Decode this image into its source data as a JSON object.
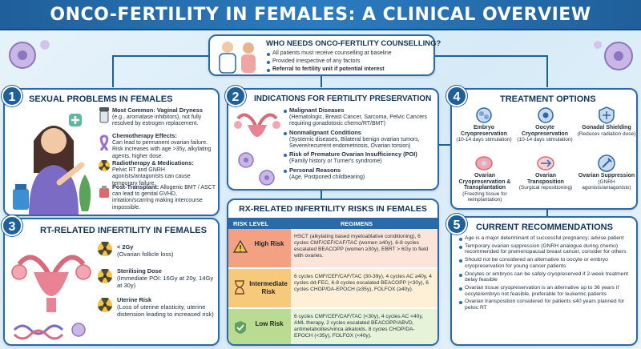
{
  "title": "ONCO-FERTILITY IN FEMALES: A CLINICAL OVERVIEW",
  "who": {
    "heading": "WHO NEEDS ONCO-FERTILITY COUNSELLING?",
    "items": [
      "All patients must receive counselling at baseline",
      "Provided irrespective of any factors",
      "Referral to fertility unit if potential interest"
    ]
  },
  "sexual": {
    "num": "1",
    "heading": "SEXUAL PROBLEMS IN FEMALES",
    "items": [
      {
        "title": "Most Common: Vaginal Dryness",
        "body": "(e.g., aromatase inhibitors), not fully resolved by estrogen replacement."
      },
      {
        "title": "Chemotherapy Effects:",
        "body": "Can lead to permanent ovarian failure. Risk increases with age >35y, alkylating agents, higher dose."
      },
      {
        "title": "Radiotherapy & Medications:",
        "body": "Pelvic RT and GNRH agonists/antagonists can cause temporary failure."
      },
      {
        "title": "Post-Transplant:",
        "body": "Allogenic BMT / ASCT can lead to genital GVHD, irritation/scarring making intercourse impossible."
      }
    ]
  },
  "indications": {
    "num": "2",
    "heading": "INDICATIONS FOR FERTILITY PRESERVATION",
    "items": [
      {
        "title": "Malignant Diseases",
        "body": "(Hematologic, Breast Cancer, Sarcoma, Pelvic Cancers requiring gonadotoxic chemo/RT/BMT)"
      },
      {
        "title": "Nonmalignant Conditions",
        "body": "(Systemic diseases, Bilateral benign ovarian tumors, Severe/recurrent endometriosis, Ovarian torsion)"
      },
      {
        "title": "Risk of Premature Ovarian Insufficiency (POI)",
        "body": "(Family history or Turner's syndrome)"
      },
      {
        "title": "Personal Reasons",
        "body": "(Age, Postponed childbearing)"
      }
    ]
  },
  "rt": {
    "num": "3",
    "heading": "RT-RELATED INFERTILITY IN FEMALES",
    "items": [
      {
        "title": "< 2Gy",
        "body": "(Ovarian follicle loss)"
      },
      {
        "title": "Sterilising Dose",
        "body": "(Immediate POI: 16Gy at 20y, 14Gy at 30y)"
      },
      {
        "title": "Uterine Risk",
        "body": "(Loss of uterine elasticity, uterine distension leading to increased risk)"
      }
    ]
  },
  "rx": {
    "heading": "RX-RELATED INFERTILITY RISKS IN FEMALES",
    "col1": "RISK LEVEL",
    "col2": "REGIMENS",
    "rows": [
      {
        "level": "High Risk",
        "regimens": "HSCT (alkylating based myeloablative conditioning), 6 cycles CMF/CEF/CAF/TAC (women ≥40y), 6-8 cycles escalated BEACOPP (women ≥30y), EBRT > 6Gy to field with ovaries.",
        "color": "#f4a083"
      },
      {
        "level": "Intermediate Risk",
        "regimens": "6 cycles CMF/CEF/CAF/TAC (30-39y), 4 cycles AC ≥40y, 4 cycles dd-FEC, 6-8 cycles escalated BEACOPP (<30y), 6 cycles CHOP/DA-EPOCH (≥35y), FOLFOX (≥40y).",
        "color": "#f7c97a"
      },
      {
        "level": "Low Risk",
        "regimens": "6 cycles CMF/CEF/CAF/TAC (<30y), 4 cycles AC <40y, AML therapy, 2 cycles escalated BEACOPP/ABVD, antimetabolites/vinca alkaloids, 8 cycles CHOP/DA-EPOCH (<35y), FOLFOX (<40y).",
        "color": "#b9dc92"
      }
    ]
  },
  "treatment": {
    "num": "4",
    "heading": "TREATMENT OPTIONS",
    "options": [
      {
        "title": "Embryo Cryopreservation",
        "note": "(10-14 days stimulation)"
      },
      {
        "title": "Oocyte Cryopreservation",
        "note": "(10-14 days stimulation)"
      },
      {
        "title": "Gonadal Shielding",
        "note": "(Reduces radiation dose)"
      },
      {
        "title": "Ovarian Cryopreservation & Transplantation",
        "note": "(Freezing tissue for reimplantation)"
      },
      {
        "title": "Ovarian Transposition",
        "note": "(Surgical repositioning)"
      },
      {
        "title": "Ovarian Suppression",
        "note": "(GNRH agonists/antagonists)"
      }
    ]
  },
  "recs": {
    "num": "5",
    "heading": "CURRENT RECOMMENDATIONS",
    "items": [
      "Age is a major determinant of successful pregnancy; advise patient",
      "Temporary ovarian suppression (GNRH analogue during chemo) recommended for premenopausal breast cancer, consider for others",
      "Should not be considered an alternative to oocyte or embryo cryopreservation for young cancer patients",
      "Oocytes or embryos can be safely cryopreserved if 2-week treatment delay feasible",
      "Ovarian tissue cryopreservation is an alternative up to 36 years if oocyte/embryo not feasible, preferable for leukemic patients",
      "Ovarian transposition considered for patients ≤40 years planned for pelvic RT"
    ]
  },
  "colors": {
    "accent": "#1f5f9a",
    "border": "#2a6aa8",
    "high": "#f4a083",
    "intermediate": "#f7c97a",
    "low": "#b9dc92"
  },
  "icons": [
    "doctor-patient-icon",
    "woman-icon",
    "uterus-icon",
    "warning-icon",
    "radiation-icon",
    "cell-icon",
    "shield-icon"
  ]
}
